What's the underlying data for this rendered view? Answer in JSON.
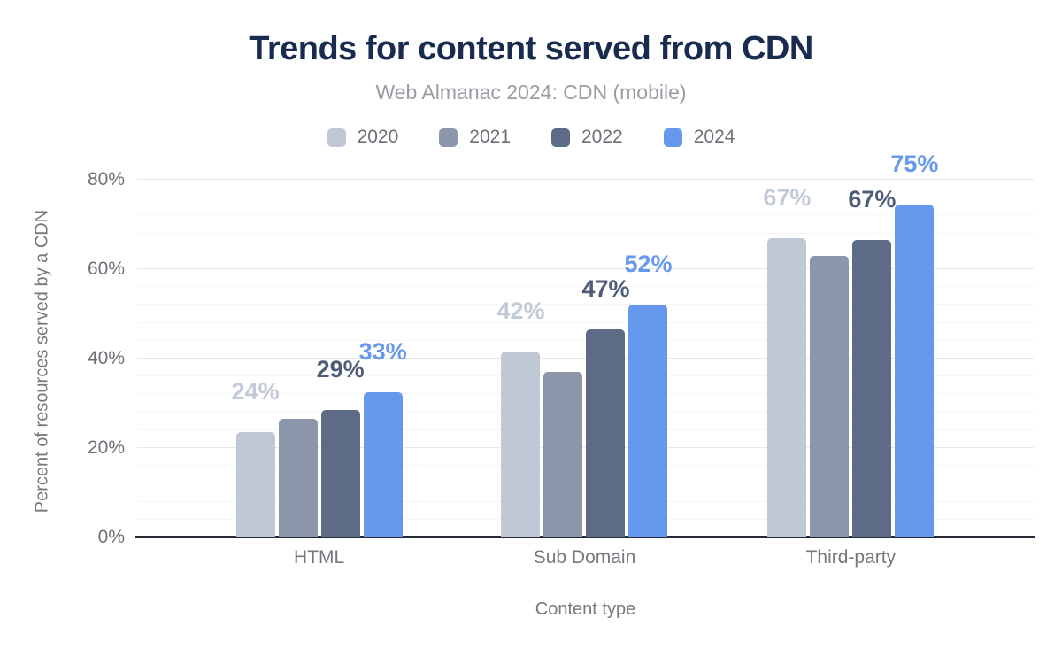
{
  "chart_data": {
    "type": "bar",
    "title": "Trends for content served from CDN",
    "subtitle": "Web Almanac 2024: CDN (mobile)",
    "xlabel": "Content type",
    "ylabel": "Percent of resources served by a CDN",
    "categories": [
      "HTML",
      "Sub Domain",
      "Third-party"
    ],
    "series": [
      {
        "name": "2020",
        "color": "#c1c8d5",
        "label_color": "#c3cad7",
        "values": [
          23.5,
          41.5,
          67.0
        ],
        "labels": [
          "24%",
          "42%",
          "67%"
        ]
      },
      {
        "name": "2021",
        "color": "#8b96ab",
        "label_color": null,
        "values": [
          26.5,
          37.0,
          63.0
        ],
        "labels": null
      },
      {
        "name": "2022",
        "color": "#5d6b87",
        "label_color": "#4f5c78",
        "values": [
          28.5,
          46.5,
          66.5
        ],
        "labels": [
          "29%",
          "47%",
          "67%"
        ]
      },
      {
        "name": "2024",
        "color": "#6699ee",
        "label_color": "#6699ee",
        "values": [
          32.5,
          52.0,
          74.5
        ],
        "labels": [
          "33%",
          "52%",
          "75%"
        ]
      }
    ],
    "ylim": [
      0,
      80
    ],
    "yticks": [
      0,
      20,
      40,
      60,
      80
    ],
    "ytick_labels": [
      "0%",
      "20%",
      "40%",
      "60%",
      "80%"
    ],
    "grid": {
      "minor_step": 4,
      "major_step": 20,
      "on": true
    },
    "legend_position": "top",
    "group_centers_pct": [
      20.3,
      49.9,
      79.6
    ]
  },
  "colors": {
    "background": "#ffffff",
    "title": "#1a2b50",
    "subtitle": "#999da3",
    "axis_line": "#262b36",
    "tick_label": "#6d7177",
    "axis_title": "#75797e",
    "gridline_minor": "#f5f5f5",
    "gridline_major": "#e8e8e8"
  }
}
